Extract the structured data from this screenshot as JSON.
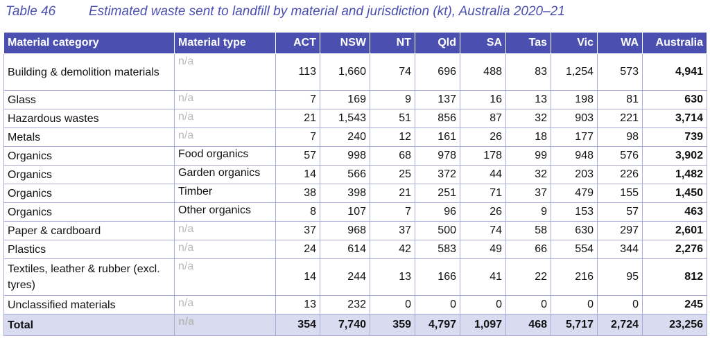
{
  "caption": {
    "number": "Table 46",
    "title": "Estimated waste sent to landfill by material and jurisdiction (kt), Australia 2020–21"
  },
  "headers": [
    "Material category",
    "Material type",
    "ACT",
    "NSW",
    "NT",
    "Qld",
    "SA",
    "Tas",
    "Vic",
    "WA",
    "Australia"
  ],
  "rows": [
    {
      "category": "Building & demolition materials",
      "type": "n/a",
      "values": [
        "113",
        "1,660",
        "74",
        "696",
        "488",
        "83",
        "1,254",
        "573",
        "4,941"
      ]
    },
    {
      "category": "Glass",
      "type": "n/a",
      "values": [
        "7",
        "169",
        "9",
        "137",
        "16",
        "13",
        "198",
        "81",
        "630"
      ]
    },
    {
      "category": "Hazardous wastes",
      "type": "n/a",
      "values": [
        "21",
        "1,543",
        "51",
        "856",
        "87",
        "32",
        "903",
        "221",
        "3,714"
      ]
    },
    {
      "category": "Metals",
      "type": "n/a",
      "values": [
        "7",
        "240",
        "12",
        "161",
        "26",
        "18",
        "177",
        "98",
        "739"
      ]
    },
    {
      "category": "Organics",
      "type": "Food organics",
      "values": [
        "57",
        "998",
        "68",
        "978",
        "178",
        "99",
        "948",
        "576",
        "3,902"
      ]
    },
    {
      "category": "Organics",
      "type": "Garden organics",
      "values": [
        "14",
        "566",
        "25",
        "372",
        "44",
        "32",
        "203",
        "226",
        "1,482"
      ]
    },
    {
      "category": "Organics",
      "type": "Timber",
      "values": [
        "38",
        "398",
        "21",
        "251",
        "71",
        "37",
        "479",
        "155",
        "1,450"
      ]
    },
    {
      "category": "Organics",
      "type": "Other organics",
      "values": [
        "8",
        "107",
        "7",
        "96",
        "26",
        "9",
        "153",
        "57",
        "463"
      ]
    },
    {
      "category": "Paper & cardboard",
      "type": "n/a",
      "values": [
        "37",
        "968",
        "37",
        "500",
        "74",
        "58",
        "630",
        "297",
        "2,601"
      ]
    },
    {
      "category": "Plastics",
      "type": "n/a",
      "values": [
        "24",
        "614",
        "42",
        "583",
        "49",
        "66",
        "554",
        "344",
        "2,276"
      ]
    },
    {
      "category": "Textiles, leather & rubber (excl. tyres)",
      "type": "n/a",
      "values": [
        "14",
        "244",
        "13",
        "166",
        "41",
        "22",
        "216",
        "95",
        "812"
      ]
    },
    {
      "category": "Unclassified materials",
      "type": "n/a",
      "values": [
        "13",
        "232",
        "0",
        "0",
        "0",
        "0",
        "0",
        "0",
        "245"
      ]
    }
  ],
  "total": {
    "category": "Total",
    "type": "n/a",
    "values": [
      "354",
      "7,740",
      "359",
      "4,797",
      "1,097",
      "468",
      "5,717",
      "2,724",
      "23,256"
    ]
  },
  "colors": {
    "header_bg": "#4a4fb0",
    "caption": "#4a4fb0",
    "total_bg": "#d9dbf0",
    "border": "#a9acd8"
  }
}
